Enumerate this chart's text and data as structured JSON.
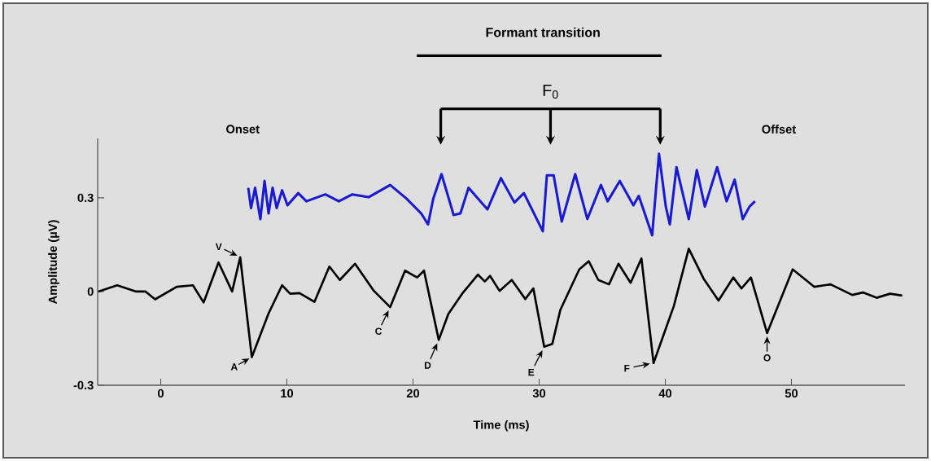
{
  "chart_data": {
    "type": "line",
    "xlabel": "Time (ms)",
    "ylabel": "Amplitude (µV)",
    "xlim": [
      -5,
      59
    ],
    "ylim": [
      -0.3,
      0.49
    ],
    "xticks": [
      0,
      10,
      20,
      30,
      40,
      50
    ],
    "yticks": [
      -0.3,
      0,
      0.3
    ],
    "marker": "none",
    "line_style": "solid",
    "series": [
      {
        "color": "#000000",
        "x": [
          -4.95,
          -3.45,
          -1.95,
          -1.2,
          -0.45,
          1.27,
          2.55,
          3.4,
          4.58,
          5.66,
          6.3,
          7.22,
          8.55,
          9.62,
          10.26,
          11.0,
          12.19,
          13.37,
          14.2,
          15.4,
          16.9,
          18.19,
          19.37,
          20.33,
          20.87,
          22.04,
          22.8,
          23.97,
          25.15,
          25.69,
          26.11,
          26.86,
          27.83,
          28.9,
          29.54,
          30.4,
          31.04,
          31.68,
          33.18,
          33.93,
          34.69,
          35.54,
          36.29,
          37.25,
          38.11,
          39.07,
          40.68,
          41.86,
          43.04,
          44.22,
          45.39,
          46.04,
          46.79,
          48.07,
          50.1,
          51.82,
          53.1,
          54.82,
          55.67,
          56.75,
          57.82,
          58.78
        ],
        "values": [
          0.0,
          0.02,
          0.0,
          0.0,
          -0.025,
          0.015,
          0.02,
          -0.035,
          0.093,
          0.0,
          0.11,
          -0.21,
          -0.07,
          0.02,
          -0.007,
          -0.005,
          -0.033,
          0.08,
          0.037,
          0.089,
          0.002,
          -0.05,
          0.067,
          0.045,
          0.067,
          -0.155,
          -0.072,
          -0.003,
          0.054,
          0.032,
          0.05,
          0.002,
          0.037,
          -0.024,
          0.01,
          -0.177,
          -0.168,
          -0.059,
          0.071,
          0.097,
          0.037,
          0.023,
          0.089,
          0.028,
          0.106,
          -0.229,
          -0.046,
          0.137,
          0.041,
          -0.029,
          0.045,
          0.01,
          0.045,
          -0.133,
          0.071,
          0.015,
          0.023,
          -0.011,
          -0.003,
          -0.02,
          -0.007,
          -0.013
        ]
      },
      {
        "color": "#1a1ad0",
        "x": [
          6.94,
          7.16,
          7.48,
          7.9,
          8.23,
          8.55,
          8.87,
          9.19,
          9.62,
          10.05,
          10.9,
          11.55,
          13.05,
          14.12,
          15.19,
          16.48,
          18.19,
          19.47,
          20.65,
          21.19,
          21.61,
          22.26,
          23.22,
          23.76,
          24.4,
          25.9,
          26.97,
          28.04,
          28.79,
          30.29,
          30.61,
          31.15,
          31.79,
          32.86,
          33.82,
          34.9,
          35.43,
          36.39,
          37.47,
          37.9,
          38.96,
          39.5,
          40.04,
          40.36,
          40.89,
          41.86,
          42.5,
          43.14,
          44.11,
          44.86,
          45.5,
          46.14,
          46.68,
          47.11
        ],
        "values": [
          0.332,
          0.267,
          0.332,
          0.232,
          0.354,
          0.25,
          0.332,
          0.267,
          0.324,
          0.276,
          0.315,
          0.289,
          0.311,
          0.289,
          0.311,
          0.302,
          0.341,
          0.298,
          0.25,
          0.215,
          0.298,
          0.376,
          0.245,
          0.25,
          0.332,
          0.263,
          0.363,
          0.285,
          0.315,
          0.193,
          0.372,
          0.372,
          0.224,
          0.376,
          0.232,
          0.341,
          0.289,
          0.354,
          0.276,
          0.306,
          0.18,
          0.441,
          0.272,
          0.215,
          0.398,
          0.232,
          0.389,
          0.272,
          0.398,
          0.289,
          0.358,
          0.232,
          0.272,
          0.289
        ]
      }
    ],
    "annotations": [
      "Formant transition",
      "F$_{0}$",
      "Onset",
      "Offset",
      {
        "text": "V",
        "x": 6.3,
        "y": 0.11
      },
      {
        "text": "A",
        "x": 7.22,
        "y": -0.21
      },
      {
        "text": "C",
        "x": 18.19,
        "y": -0.05
      },
      {
        "text": "D",
        "x": 22.04,
        "y": -0.155
      },
      {
        "text": "E",
        "x": 30.4,
        "y": -0.177
      },
      {
        "text": "F",
        "x": 39.07,
        "y": -0.229
      },
      {
        "text": "O",
        "x": 48.07,
        "y": -0.133
      }
    ]
  }
}
